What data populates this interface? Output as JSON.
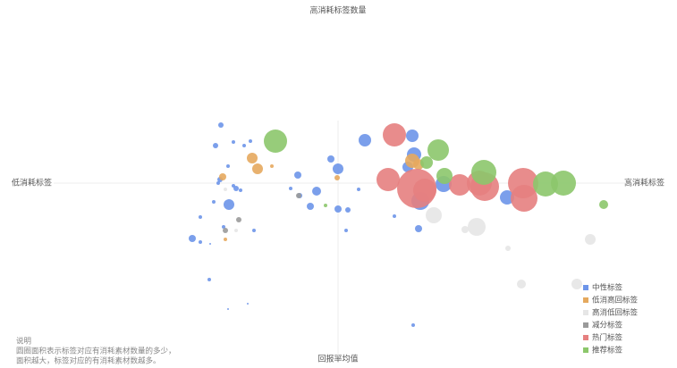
{
  "chart_data": {
    "type": "bubble",
    "top_label": "高消耗标签数量",
    "left_label": "低消耗标签",
    "right_label": "高消耗标签",
    "bottom_label": "回报率均值",
    "xlim": [
      -318,
      322
    ],
    "ylim": [
      -195,
      70
    ],
    "legend": "bottom-right",
    "note": [
      "说明",
      "圆圈面积表示标签对应有消耗素材数量的多少，",
      "面积越大，标签对应的有消耗素材数越多。"
    ],
    "series": [
      {
        "name": "中性标签",
        "color": "#6d95e9",
        "x": [
          -131,
          -137,
          -117,
          -105,
          -98,
          -123,
          -132,
          -134,
          -117,
          -114,
          -109,
          -122,
          -139,
          -154,
          -163,
          -154,
          -143,
          -128,
          -94,
          -144,
          -123,
          -101,
          -45,
          -53,
          -43,
          -31,
          -24,
          -8,
          0,
          0,
          11,
          9,
          23,
          30,
          83,
          63,
          90,
          85,
          78,
          92,
          118,
          189,
          84
        ],
        "values": [
          65,
          42,
          46,
          42,
          47,
          19,
          4,
          0,
          -3,
          -6,
          -8,
          -24,
          -21,
          -38,
          -62,
          -66,
          -68,
          -49,
          -53,
          -108,
          -141,
          -135,
          9,
          -6,
          -14,
          -26,
          -9,
          27,
          16,
          -29,
          -30,
          -53,
          -7,
          48,
          53,
          -37,
          -51,
          32,
          18,
          -20,
          -1,
          -16,
          -159
        ],
        "sizes": [
          3,
          3,
          2,
          2,
          2,
          2,
          3,
          2,
          2,
          3,
          2,
          6,
          2,
          2,
          4,
          2,
          1,
          2,
          2,
          2,
          1,
          1,
          4,
          2,
          3,
          4,
          5,
          4,
          6,
          4,
          3,
          2,
          2,
          7,
          7,
          2,
          4,
          8,
          6,
          10,
          9,
          8,
          2
        ]
      },
      {
        "name": "低消高回标签",
        "color": "#e5a95e",
        "x": [
          -96,
          -90,
          -74,
          -129,
          -1,
          -126,
          83,
          90
        ],
        "values": [
          28,
          16,
          19,
          7,
          6,
          -63,
          25,
          21
        ],
        "sizes": [
          6,
          6,
          2,
          4,
          3,
          2,
          8,
          6
        ]
      },
      {
        "name": "高消低回标签",
        "color": "#e6e6e6",
        "x": [
          107,
          155,
          142,
          190,
          205,
          282,
          267,
          -114,
          -126
        ],
        "values": [
          -36,
          -49,
          -52,
          -73,
          -113,
          -63,
          -113,
          -53,
          -7
        ],
        "sizes": [
          9,
          10,
          4,
          3,
          5,
          6,
          6,
          2,
          2
        ]
      },
      {
        "name": "减分标签",
        "color": "#9a9a9a",
        "x": [
          -111,
          -44,
          -126
        ],
        "values": [
          -41,
          -14,
          -53
        ],
        "sizes": [
          3,
          3,
          3
        ]
      },
      {
        "name": "热门标签",
        "color": "#e68080",
        "x": [
          63,
          56,
          88,
          97,
          136,
          158,
          164,
          207,
          208
        ],
        "values": [
          54,
          4,
          -6,
          -8,
          -2,
          0,
          -4,
          0,
          -17
        ],
        "sizes": [
          13,
          13,
          22,
          13,
          12,
          14,
          16,
          17,
          15
        ]
      },
      {
        "name": "推荐标签",
        "color": "#8cc76b",
        "x": [
          -70,
          112,
          99,
          119,
          163,
          232,
          252,
          297,
          -14
        ],
        "values": [
          47,
          37,
          23,
          8,
          12,
          -1,
          0,
          -24,
          -25
        ],
        "sizes": [
          13,
          12,
          7,
          9,
          14,
          14,
          14,
          5,
          2
        ]
      }
    ]
  }
}
